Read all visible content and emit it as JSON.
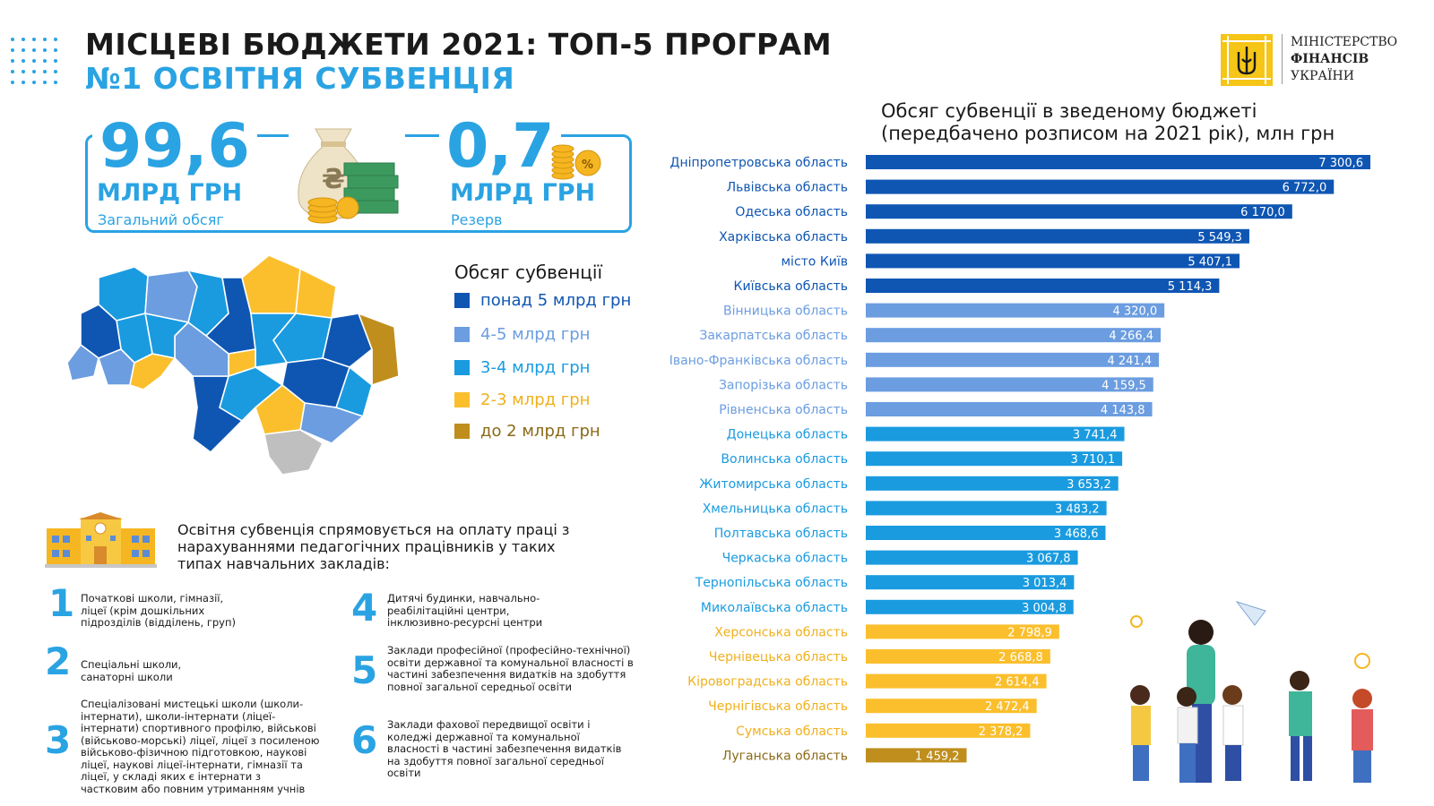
{
  "header": {
    "title_line1": "МІСЦЕВІ БЮДЖЕТИ 2021: ТОП-5 ПРОГРАМ",
    "title_line2": "№1 ОСВІТНЯ СУБВЕНЦІЯ"
  },
  "logo": {
    "line1": "МІНІСТЕРСТВО",
    "line2": "ФІНАНСІВ",
    "line3": "УКРАЇНИ"
  },
  "summary": {
    "total_value": "99,6",
    "total_unit": "МЛРД ГРН",
    "total_label": "Загальний обсяг",
    "reserve_value": "0,7",
    "reserve_unit": "МЛРД ГРН",
    "reserve_label": "Резерв",
    "currency_symbol": "₴",
    "percent_symbol": "%"
  },
  "legend": {
    "title": "Обсяг субвенції",
    "items": [
      {
        "label": "понад 5 млрд грн",
        "color": "#0f56b3"
      },
      {
        "label": "4-5 млрд грн",
        "color": "#6b9de0"
      },
      {
        "label": "3-4 млрд грн",
        "color": "#1a9be0"
      },
      {
        "label": "2-3 млрд грн",
        "color": "#fbbf2d"
      },
      {
        "label": "до 2 млрд грн",
        "color": "#bf8e1d"
      }
    ]
  },
  "description": {
    "text": "Освітня субвенція спрямовується на оплату праці з нарахуваннями педагогічних працівників у таких типах навчальних закладів:",
    "types": [
      {
        "num": "1",
        "text": "Початкові школи, гімназії, ліцеї (крім дошкільних підрозділів (відділень, груп)"
      },
      {
        "num": "2",
        "text": "Спеціальні школи, санаторні школи"
      },
      {
        "num": "3",
        "text": "Спеціалізовані мистецькі школи (школи-інтернати), школи-інтернати (ліцеї-інтернати) спортивного профілю, військові (військово-морські) ліцеї, ліцеї з посиленою військово-фізичною підготовкою, наукові ліцеї, наукові ліцеї-інтернати, гімназії та ліцеї, у складі яких є інтернати з частковим або повним утриманням учнів"
      },
      {
        "num": "4",
        "text": "Дитячі будинки, навчально-реабілітаційні центри, інклюзивно-ресурсні центри"
      },
      {
        "num": "5",
        "text": "Заклади професійної (професійно-технічної) освіти державної та комунальної власності в частині забезпечення видатків на здобуття повної загальної середньої освіти"
      },
      {
        "num": "6",
        "text": "Заклади фахової передвищої освіти і коледжі державної та комунальної власності в частині забезпечення видатків на здобуття повної загальної середньої освіти"
      }
    ]
  },
  "chart_data": {
    "type": "bar",
    "orientation": "horizontal",
    "title": "Обсяг субвенції в зведеному бюджеті (передбачено розписом на 2021 рік), млн грн",
    "title_line1": "Обсяг субвенції в зведеному бюджеті",
    "title_line2": "(передбачено розписом на 2021 рік), млн грн",
    "categories": [
      "Дніпропетровська область",
      "Львівська  область",
      "Одеська область",
      "Харківська область",
      "місто Київ",
      "Київська область",
      "Вінницька область",
      "Закарпатська  область",
      "Івано-Франківська область",
      "Запорізька область",
      "Рівненська область",
      "Донецька область",
      "Волинська область",
      "Житомирська  область",
      "Хмельницька область",
      "Полтавська область",
      "Черкаська область",
      "Тернопільська область",
      "Миколаївська область",
      "Херсонська область",
      "Чернівецька область",
      "Кіровоградська область",
      "Чернігівська область",
      "Сумська область",
      "Луганська область"
    ],
    "values": [
      7300.6,
      6772.0,
      6170.0,
      5549.3,
      5407.1,
      5114.3,
      4320.0,
      4266.4,
      4241.4,
      4159.5,
      4143.8,
      3741.4,
      3710.1,
      3653.2,
      3483.2,
      3468.6,
      3067.8,
      3013.4,
      3004.8,
      2798.9,
      2668.8,
      2614.4,
      2472.4,
      2378.2,
      1459.2
    ],
    "value_labels": [
      "7 300,6",
      "6 772,0",
      "6 170,0",
      "5 549,3",
      "5 407,1",
      "5 114,3",
      "4 320,0",
      "4 266,4",
      "4 241,4",
      "4 159,5",
      "4 143,8",
      "3 741,4",
      "3 710,1",
      "3 653,2",
      "3 483,2",
      "3 468,6",
      "3 067,8",
      "3 013,4",
      "3 004,8",
      "2 798,9",
      "2 668,8",
      "2 614,4",
      "2 472,4",
      "2 378,2",
      "1 459,2"
    ],
    "xlim": [
      0,
      7300.6
    ],
    "grid": false,
    "legend": "none",
    "band_colors": {
      "over_5": "#0f56b3",
      "from_4_to_5": "#6b9de0",
      "from_3_to_4": "#1a9be0",
      "from_2_to_3": "#fbbf2d",
      "under_2": "#bf8e1d"
    },
    "label_colors": {
      "over_5": "#0f56b3",
      "from_4_to_5": "#6b9de0",
      "from_3_to_4": "#1a9be0",
      "from_2_to_3": "#f0b01d",
      "under_2": "#8a6a16"
    }
  },
  "colors": {
    "accent": "#2aa3e3",
    "title": "#1a1a1a",
    "logo_yellow": "#f5c518",
    "map_grey": "#bfbfbf"
  }
}
